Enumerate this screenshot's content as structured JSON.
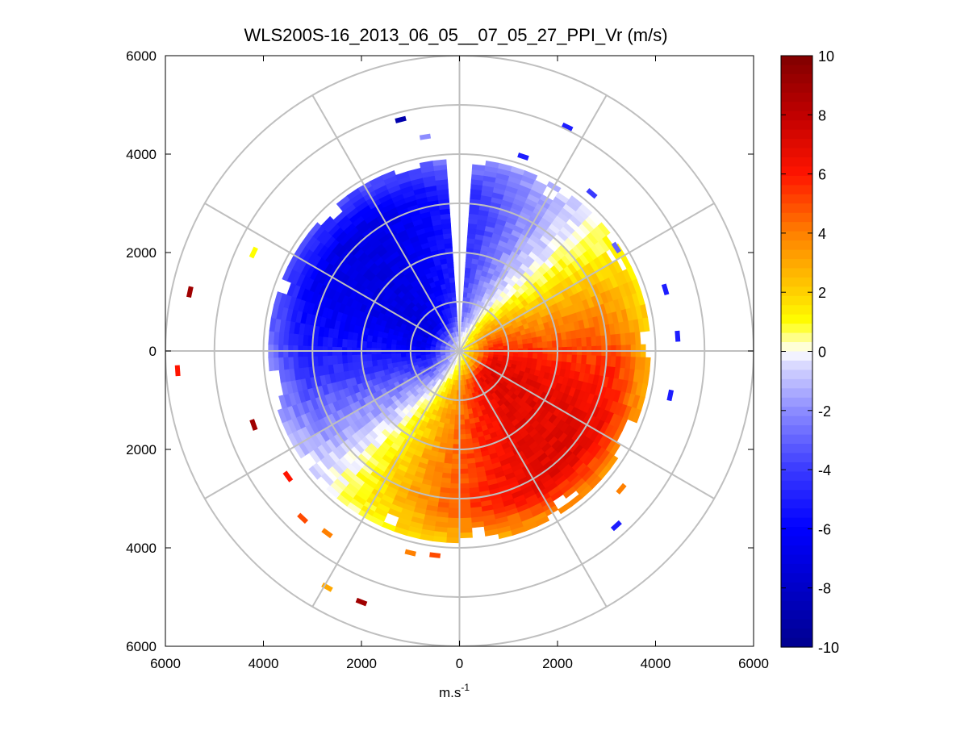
{
  "chart_data": {
    "type": "heatmap",
    "subtype": "polar-ppi",
    "title": "WLS200S-16_2013_06_05__07_05_27_PPI_Vr (m/s)",
    "xlabel": "m.s",
    "xlabel_superscript": "-1",
    "ylabel": "",
    "xlim": [
      -6000,
      6000
    ],
    "ylim": [
      -6000,
      6000
    ],
    "x_ticks": [
      "6000",
      "4000",
      "2000",
      "0",
      "2000",
      "4000",
      "6000"
    ],
    "y_ticks": [
      "6000",
      "4000",
      "2000",
      "0",
      "2000",
      "4000",
      "6000"
    ],
    "polar_rings_m": [
      1000,
      2000,
      3000,
      4000,
      5000,
      6000
    ],
    "polar_spokes_deg": [
      0,
      30,
      60,
      90,
      120,
      150,
      180,
      210,
      240,
      270,
      300,
      330
    ],
    "range_gate_m": 100,
    "azimuth_step_deg": 4,
    "max_range_m": 3900,
    "colorbar": {
      "label_values": [
        "10",
        "8",
        "6",
        "4",
        "2",
        "0",
        "-2",
        "-4",
        "-6",
        "-8",
        "-10"
      ],
      "range": [
        -10,
        10
      ],
      "stops": [
        [
          -10,
          "#00008f"
        ],
        [
          -8,
          "#0000c8"
        ],
        [
          -6,
          "#0000ff"
        ],
        [
          -4,
          "#3a3aff"
        ],
        [
          -2,
          "#8c8cff"
        ],
        [
          -0.5,
          "#d6d6ff"
        ],
        [
          0,
          "#ffffff"
        ],
        [
          0.5,
          "#ffff80"
        ],
        [
          1,
          "#ffff00"
        ],
        [
          2,
          "#ffd000"
        ],
        [
          4,
          "#ff8000"
        ],
        [
          6,
          "#ff1400"
        ],
        [
          8,
          "#c00000"
        ],
        [
          10,
          "#800000"
        ]
      ]
    },
    "velocity_model": {
      "description": "radial velocity field",
      "sign_convention": "negative toward lidar (blue), positive away (red)",
      "peak_abs_velocity_ms": 7
    },
    "outlier_dashes": [
      {
        "x": -1200,
        "y": 4700,
        "v": -9
      },
      {
        "x": -700,
        "y": 4350,
        "v": -2
      },
      {
        "x": 2200,
        "y": 4550,
        "v": -5
      },
      {
        "x": 1300,
        "y": 3950,
        "v": -5
      },
      {
        "x": 2700,
        "y": 3200,
        "v": -4
      },
      {
        "x": 3200,
        "y": 2100,
        "v": -3
      },
      {
        "x": 4200,
        "y": 1250,
        "v": -5
      },
      {
        "x": 4450,
        "y": 300,
        "v": -5
      },
      {
        "x": 4300,
        "y": -900,
        "v": -5
      },
      {
        "x": -5500,
        "y": 1200,
        "v": 9
      },
      {
        "x": -4200,
        "y": 2000,
        "v": 1
      },
      {
        "x": -5750,
        "y": -400,
        "v": 6
      },
      {
        "x": -4200,
        "y": -1500,
        "v": 9
      },
      {
        "x": -3500,
        "y": -2550,
        "v": 6
      },
      {
        "x": -3200,
        "y": -3400,
        "v": 5
      },
      {
        "x": -2700,
        "y": -3700,
        "v": 4
      },
      {
        "x": -2700,
        "y": -4800,
        "v": 3
      },
      {
        "x": -2000,
        "y": -5100,
        "v": 9
      },
      {
        "x": -1000,
        "y": -4100,
        "v": 4
      },
      {
        "x": -500,
        "y": -4150,
        "v": 5
      },
      {
        "x": 3300,
        "y": -2800,
        "v": 4
      },
      {
        "x": 3200,
        "y": -3550,
        "v": -5
      }
    ]
  }
}
